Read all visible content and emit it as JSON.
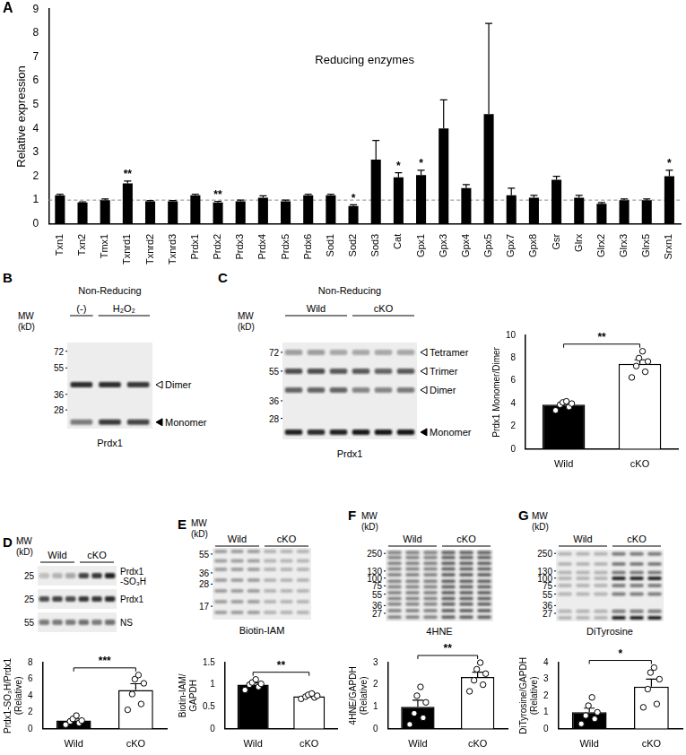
{
  "chart_data": [
    {
      "type": "bar",
      "panel_label": "A",
      "title": "Reducing enzymes",
      "y_label": "Relative expression",
      "categories": [
        "Txn1",
        "Txn2",
        "Tmx1",
        "Txnrd1",
        "Txnrd2",
        "Txnrd3",
        "Prdx1",
        "Prdx2",
        "Prdx3",
        "Prdx4",
        "Prdx5",
        "Prdx6",
        "Sod1",
        "Sod2",
        "Sod3",
        "Cat",
        "Gpx1",
        "Gpx3",
        "Gpx4",
        "Gpx5",
        "Gpx7",
        "Gpx8",
        "Gsr",
        "Glrx",
        "Glrx2",
        "Glrx3",
        "Glrx5",
        "Srxn1"
      ],
      "values": [
        1.2,
        0.9,
        1.0,
        1.7,
        0.95,
        0.95,
        1.2,
        0.9,
        0.95,
        1.1,
        0.95,
        1.2,
        1.2,
        0.75,
        2.7,
        1.95,
        2.05,
        4.0,
        1.5,
        4.6,
        1.2,
        1.1,
        1.85,
        1.1,
        0.85,
        1.0,
        1.0,
        2.0
      ],
      "errors": [
        0.05,
        0.03,
        0.05,
        0.1,
        0.03,
        0.03,
        0.05,
        0.05,
        0.05,
        0.08,
        0.05,
        0.05,
        0.05,
        0.05,
        0.8,
        0.2,
        0.2,
        1.2,
        0.15,
        3.8,
        0.3,
        0.1,
        0.15,
        0.1,
        0.05,
        0.05,
        0.05,
        0.25
      ],
      "reference_line": 1,
      "annotations": [
        {
          "category": "Txnrd1",
          "text": "**"
        },
        {
          "category": "Prdx2",
          "text": "**"
        },
        {
          "category": "Sod2",
          "text": "*"
        },
        {
          "category": "Cat",
          "text": "*"
        },
        {
          "category": "Gpx1",
          "text": "*"
        },
        {
          "category": "Srxn1",
          "text": "*"
        }
      ],
      "color": "#000000",
      "ylim": [
        0,
        9
      ],
      "yticks": [
        0,
        1,
        2,
        3,
        4,
        5,
        6,
        7,
        8,
        9
      ],
      "grid": false
    },
    {
      "type": "bar",
      "y_label": "Prdx1 Monomer/Dimer",
      "categories": [
        "Wild",
        "cKO"
      ],
      "values": [
        3.9,
        7.5
      ],
      "errors": [
        0.2,
        0.35
      ],
      "points": [
        [
          3.4,
          3.7,
          3.9,
          4.0,
          4.1,
          4.2
        ],
        [
          6.3,
          6.8,
          7.3,
          7.7,
          8.0,
          8.6
        ]
      ],
      "significance": "**",
      "colors": [
        "#000000",
        "#ffffff"
      ],
      "ylim": [
        0,
        10
      ],
      "yticks": [
        0,
        2,
        4,
        6,
        8,
        10
      ],
      "grid": false
    },
    {
      "type": "bar",
      "y_label": [
        "Prdx1-SO₃H/Prdx1",
        "(Relative)"
      ],
      "categories": [
        "Wild",
        "cKO"
      ],
      "values": [
        1.0,
        4.7
      ],
      "errors": [
        0.2,
        0.75
      ],
      "points": [
        [
          0.5,
          0.7,
          0.9,
          1.0,
          1.2,
          1.6
        ],
        [
          2.3,
          3.0,
          4.2,
          5.5,
          6.0,
          6.5
        ]
      ],
      "significance": "***",
      "colors": [
        "#000000",
        "#ffffff"
      ],
      "ylim": [
        0,
        8
      ],
      "yticks": [
        0,
        2,
        4,
        6,
        8
      ],
      "grid": false
    },
    {
      "type": "bar",
      "y_label": [
        "Biotin-IAM/",
        "GAPDH"
      ],
      "categories": [
        "Wild",
        "cKO"
      ],
      "values": [
        1.0,
        0.74
      ],
      "errors": [
        0.04,
        0.02
      ],
      "points": [
        [
          0.88,
          0.95,
          1.0,
          1.02,
          1.05,
          1.12
        ],
        [
          0.68,
          0.71,
          0.73,
          0.75,
          0.77,
          0.8
        ]
      ],
      "significance": "**",
      "colors": [
        "#000000",
        "#ffffff"
      ],
      "ylim": [
        0,
        1.5
      ],
      "yticks": [
        0,
        0.5,
        1,
        1.5
      ],
      "grid": false
    },
    {
      "type": "bar",
      "y_label": [
        "4HNE/GAPDH",
        "(Relative)"
      ],
      "categories": [
        "Wild",
        "cKO"
      ],
      "values": [
        1.0,
        2.35
      ],
      "errors": [
        0.3,
        0.22
      ],
      "points": [
        [
          0.2,
          0.5,
          0.7,
          1.2,
          1.5,
          1.9
        ],
        [
          1.7,
          2.0,
          2.2,
          2.5,
          2.7,
          3.0
        ]
      ],
      "significance": "**",
      "colors": [
        "#000000",
        "#ffffff"
      ],
      "ylim": [
        0,
        3
      ],
      "yticks": [
        0,
        1,
        2,
        3
      ],
      "grid": false
    },
    {
      "type": "bar",
      "y_label": [
        "DiTyrosine/GAPDH",
        "(Relative)"
      ],
      "categories": [
        "Wild",
        "cKO"
      ],
      "values": [
        1.0,
        2.55
      ],
      "errors": [
        0.25,
        0.45
      ],
      "points": [
        [
          0.3,
          0.6,
          0.8,
          1.0,
          1.4,
          1.9
        ],
        [
          1.3,
          1.5,
          2.4,
          3.0,
          3.4,
          3.7
        ]
      ],
      "significance": "*",
      "colors": [
        "#000000",
        "#ffffff"
      ],
      "ylim": [
        0,
        4
      ],
      "yticks": [
        0,
        1,
        2,
        3,
        4
      ],
      "grid": false
    }
  ],
  "blots": [
    {
      "panel_label": "B",
      "header": "Non-Reducing",
      "lanes": [
        {
          "label": "(-)",
          "count": 1
        },
        {
          "label": "H₂O₂",
          "count": 2
        }
      ],
      "mw_title": [
        "MW",
        "(kD)"
      ],
      "mw": [
        72,
        55,
        36,
        28
      ],
      "bands": [
        {
          "label": "Dimer",
          "mw": 42
        },
        {
          "label": "Monomer",
          "mw": 23
        }
      ],
      "caption": "Prdx1"
    },
    {
      "panel_label": "C",
      "header": "Non-Reducing",
      "lanes": [
        {
          "label": "Wild",
          "count": 3
        },
        {
          "label": "cKO",
          "count": 3
        }
      ],
      "mw_title": [
        "MW",
        "(kD)"
      ],
      "mw": [
        72,
        55,
        36,
        28
      ],
      "bands": [
        {
          "label": "Tetramer",
          "mw": 72
        },
        {
          "label": "Trimer",
          "mw": 55
        },
        {
          "label": "Dimer",
          "mw": 42
        },
        {
          "label": "Monomer",
          "mw": 23
        }
      ],
      "caption": "Prdx1"
    },
    {
      "panel_label": "D",
      "lanes": [
        {
          "label": "Wild",
          "count": 3
        },
        {
          "label": "cKO",
          "count": 3
        }
      ],
      "mw_title": [
        "MW",
        "(kD)"
      ],
      "rows": [
        {
          "mw": 25,
          "label": [
            "Prdx1",
            "-SO₃H"
          ]
        },
        {
          "mw": 25,
          "label": [
            "Prdx1"
          ]
        },
        {
          "mw": 55,
          "label": [
            "NS"
          ]
        }
      ]
    },
    {
      "panel_label": "E",
      "lanes": [
        {
          "label": "Wild",
          "count": 3
        },
        {
          "label": "cKO",
          "count": 3
        }
      ],
      "mw_title": [
        "MW",
        "(kD)"
      ],
      "mw": [
        55,
        36,
        28,
        17
      ],
      "caption": "Biotin-IAM"
    },
    {
      "panel_label": "F",
      "lanes": [
        {
          "label": "Wild",
          "count": 3
        },
        {
          "label": "cKO",
          "count": 3
        }
      ],
      "mw_title": [
        "MW",
        "(kD)"
      ],
      "mw": [
        250,
        130,
        100,
        75,
        55,
        36,
        27
      ],
      "caption": "4HNE"
    },
    {
      "panel_label": "G",
      "lanes": [
        {
          "label": "Wild",
          "count": 3
        },
        {
          "label": "cKO",
          "count": 3
        }
      ],
      "mw_title": [
        "MW",
        "(kD)"
      ],
      "mw": [
        250,
        130,
        100,
        75,
        55,
        36,
        27
      ],
      "caption": "DiTyrosine"
    }
  ]
}
